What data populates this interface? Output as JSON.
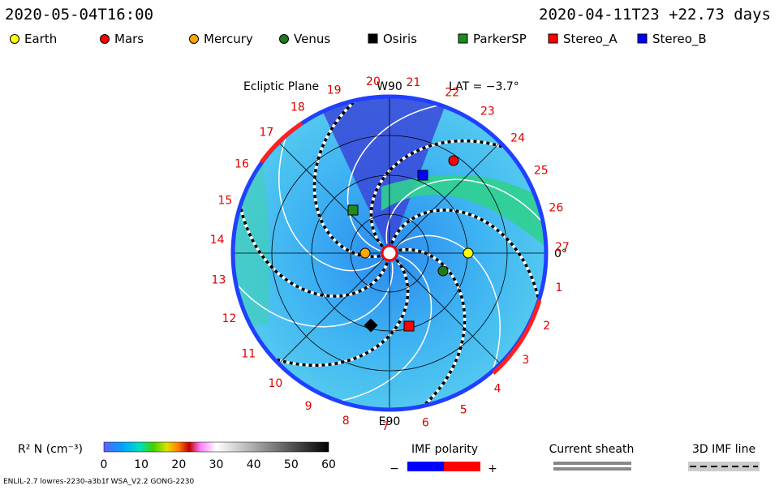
{
  "header": {
    "left": "2020-05-04T16:00",
    "right": "2020-04-11T23  +22.73 days"
  },
  "legend": [
    {
      "label": "Earth",
      "color": "#ffff00",
      "shape": "circle"
    },
    {
      "label": "Mars",
      "color": "#ff0000",
      "shape": "circle"
    },
    {
      "label": "Mercury",
      "color": "#ffa500",
      "shape": "circle"
    },
    {
      "label": "Venus",
      "color": "#1f7a1f",
      "shape": "circle"
    },
    {
      "label": "Osiris",
      "color": "#000000",
      "shape": "square"
    },
    {
      "label": "ParkerSP",
      "color": "#1f8a1f",
      "shape": "square"
    },
    {
      "label": "Stereo_A",
      "color": "#ff0000",
      "shape": "square"
    },
    {
      "label": "Stereo_B",
      "color": "#0000ff",
      "shape": "square"
    }
  ],
  "plot": {
    "title": "Ecliptic Plane",
    "top_label": "W90",
    "bottom_label": "E90",
    "lat": "LAT = −3.7°",
    "zero": "0°",
    "sectors": [
      "1",
      "2",
      "3",
      "4",
      "5",
      "6",
      "7",
      "8",
      "9",
      "10",
      "11",
      "12",
      "13",
      "14",
      "15",
      "16",
      "17",
      "18",
      "19",
      "20",
      "21",
      "22",
      "23",
      "24",
      "25",
      "26",
      "27"
    ]
  },
  "colorbar": {
    "label": "R² N (cm⁻³)",
    "ticks": [
      "0",
      "10",
      "20",
      "30",
      "40",
      "50",
      "60"
    ]
  },
  "keys": {
    "polarity": "IMF polarity",
    "minus": "−",
    "plus": "+",
    "sheath": "Current sheath",
    "imf_line": "3D IMF line"
  },
  "footer": "ENLIL-2.7 lowres-2230-a3b1f WSA_V2.2 GONG-2230"
}
